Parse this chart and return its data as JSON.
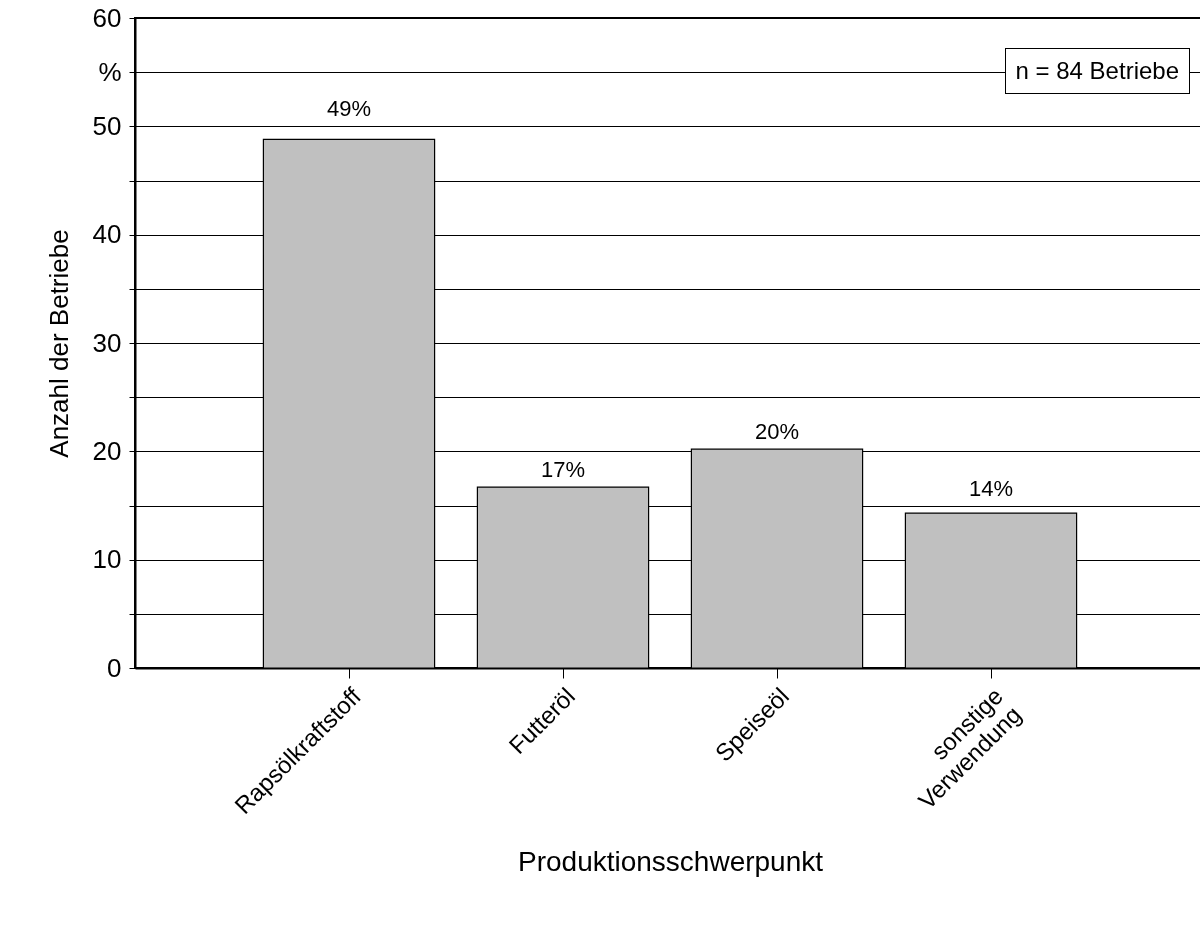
{
  "chart_data": {
    "type": "bar",
    "xlabel": "Produktionsschwerpunkt",
    "ylabel": "Anzahl der Betriebe",
    "categories": [
      "Rapsölkraftstoff",
      "Futteröl",
      "Speiseöl",
      "sonstige\nVerwendung"
    ],
    "values": [
      48.8,
      16.7,
      20.2,
      14.3
    ],
    "value_labels": [
      "49%",
      "17%",
      "20%",
      "14%"
    ],
    "color": "#c0c0c0",
    "ylim": [
      0,
      60
    ],
    "yticks": [
      0,
      {
        "value": 5,
        "label": null
      },
      10,
      {
        "value": 15,
        "label": null
      },
      20,
      {
        "value": 25,
        "label": null
      },
      30,
      {
        "value": 35,
        "label": null
      },
      40,
      {
        "value": 45,
        "label": null
      },
      50,
      {
        "value": 55,
        "label": "%"
      },
      60
    ],
    "grid": "y",
    "annotations": [
      "n = 84 Betriebe"
    ]
  }
}
